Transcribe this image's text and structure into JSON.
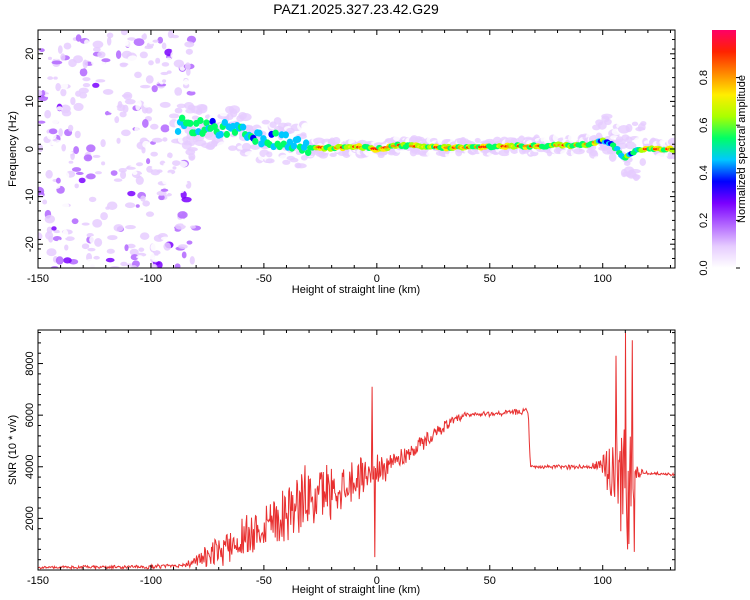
{
  "title": "PAZ1.2025.327.23.42.G29",
  "chart_data": [
    {
      "type": "heatmap",
      "name": "spectrogram",
      "xlabel": "Height of straight line (km)",
      "ylabel": "Frequency (Hz)",
      "xlim": [
        -150,
        132
      ],
      "ylim": [
        -25,
        25
      ],
      "xticks": [
        -150,
        -100,
        -50,
        0,
        50,
        100
      ],
      "yticks": [
        -20,
        -10,
        0,
        10,
        20
      ],
      "colorbar": {
        "label": "Normalized spectral amplitude",
        "range": [
          0,
          1
        ],
        "ticks": [
          0.0,
          0.2,
          0.4,
          0.6,
          0.8
        ],
        "tick_labels": [
          "0.0",
          "0.2",
          "0.4",
          "0.6",
          "0.8"
        ],
        "colors": [
          "#ffffff",
          "#e6ccff",
          "#b266ff",
          "#7a00ff",
          "#0000ff",
          "#00c8ff",
          "#00ff66",
          "#aaff00",
          "#ffee00",
          "#ff8800",
          "#ff2200",
          "#ff0066"
        ]
      },
      "noise_region_x": [
        -150,
        -80
      ],
      "ridge": [
        {
          "x": -85,
          "f": 5.0
        },
        {
          "x": -75,
          "f": 4.5
        },
        {
          "x": -65,
          "f": 4.0
        },
        {
          "x": -58,
          "f": 3.0
        },
        {
          "x": -50,
          "f": 1.5
        },
        {
          "x": -45,
          "f": 2.0
        },
        {
          "x": -40,
          "f": 1.5
        },
        {
          "x": -30,
          "f": 0.5
        },
        {
          "x": -20,
          "f": 0.2
        },
        {
          "x": -10,
          "f": 0.5
        },
        {
          "x": 0,
          "f": 0.0
        },
        {
          "x": 10,
          "f": 0.8
        },
        {
          "x": 20,
          "f": 0.5
        },
        {
          "x": 30,
          "f": 0.3
        },
        {
          "x": 40,
          "f": 0.3
        },
        {
          "x": 50,
          "f": 0.5
        },
        {
          "x": 60,
          "f": 0.6
        },
        {
          "x": 70,
          "f": 0.6
        },
        {
          "x": 80,
          "f": 0.8
        },
        {
          "x": 90,
          "f": 0.8
        },
        {
          "x": 95,
          "f": 1.2
        },
        {
          "x": 100,
          "f": 2.0
        },
        {
          "x": 105,
          "f": 0.5
        },
        {
          "x": 110,
          "f": -2.0
        },
        {
          "x": 115,
          "f": 0.0
        },
        {
          "x": 132,
          "f": 0.0
        }
      ]
    },
    {
      "type": "line",
      "name": "snr",
      "xlabel": "Height of straight line (km)",
      "ylabel": "SNR (10 * v/v)",
      "xlim": [
        -150,
        132
      ],
      "ylim": [
        0,
        9300
      ],
      "xticks": [
        -150,
        -100,
        -50,
        0,
        50,
        100
      ],
      "yticks": [
        2000,
        4000,
        6000,
        8000
      ],
      "color": "#e83030",
      "trend": [
        {
          "x": -150,
          "y": 100
        },
        {
          "x": -100,
          "y": 120
        },
        {
          "x": -85,
          "y": 200
        },
        {
          "x": -75,
          "y": 500
        },
        {
          "x": -60,
          "y": 1200
        },
        {
          "x": -50,
          "y": 1800
        },
        {
          "x": -40,
          "y": 2300
        },
        {
          "x": -30,
          "y": 2800
        },
        {
          "x": -20,
          "y": 3100
        },
        {
          "x": -10,
          "y": 3500
        },
        {
          "x": 0,
          "y": 3900
        },
        {
          "x": 10,
          "y": 4300
        },
        {
          "x": 20,
          "y": 4900
        },
        {
          "x": 30,
          "y": 5600
        },
        {
          "x": 40,
          "y": 6000
        },
        {
          "x": 50,
          "y": 6050
        },
        {
          "x": 60,
          "y": 6100
        },
        {
          "x": 67,
          "y": 6150
        },
        {
          "x": 68,
          "y": 4000
        },
        {
          "x": 95,
          "y": 4000
        },
        {
          "x": 100,
          "y": 4000
        },
        {
          "x": 110,
          "y": 3800
        },
        {
          "x": 120,
          "y": 3750
        },
        {
          "x": 132,
          "y": 3700
        }
      ],
      "noise_amplitude": [
        {
          "x": -150,
          "a": 60
        },
        {
          "x": -85,
          "a": 100
        },
        {
          "x": -70,
          "a": 700
        },
        {
          "x": -50,
          "a": 1300
        },
        {
          "x": -30,
          "a": 1500
        },
        {
          "x": -10,
          "a": 1000
        },
        {
          "x": 10,
          "a": 500
        },
        {
          "x": 30,
          "a": 250
        },
        {
          "x": 50,
          "a": 120
        },
        {
          "x": 67,
          "a": 150
        },
        {
          "x": 68,
          "a": 80
        },
        {
          "x": 95,
          "a": 120
        },
        {
          "x": 100,
          "a": 600
        },
        {
          "x": 105,
          "a": 2500
        },
        {
          "x": 112,
          "a": 3000
        },
        {
          "x": 115,
          "a": 300
        },
        {
          "x": 120,
          "a": 60
        },
        {
          "x": 132,
          "a": 60
        }
      ],
      "spikes": [
        {
          "x": -2,
          "y": 7100
        },
        {
          "x": -1,
          "y": 500
        },
        {
          "x": 106,
          "y": 8300
        },
        {
          "x": 108,
          "y": 1500
        },
        {
          "x": 110,
          "y": 9200
        },
        {
          "x": 111,
          "y": 800
        },
        {
          "x": 113,
          "y": 8900
        },
        {
          "x": 114,
          "y": 700
        }
      ]
    }
  ]
}
